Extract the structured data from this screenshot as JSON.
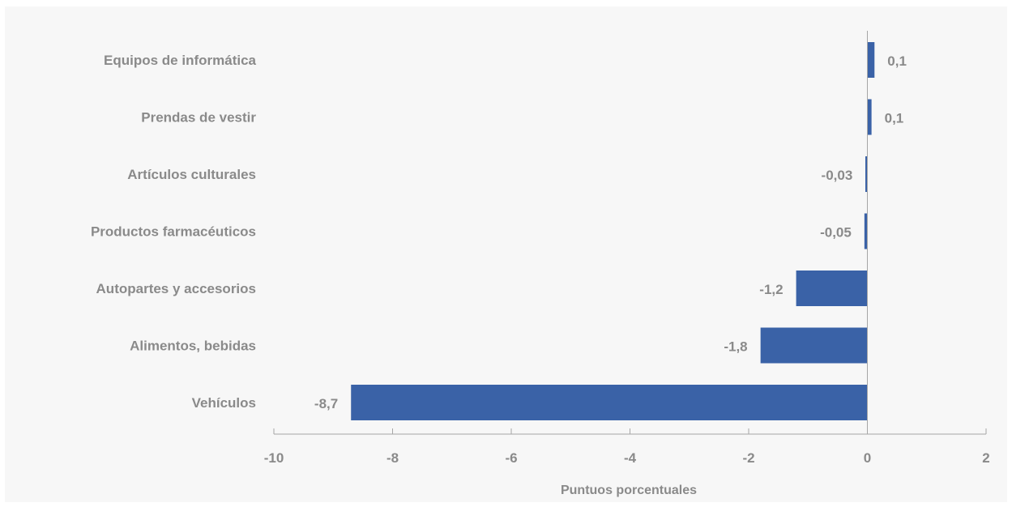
{
  "chart_data": {
    "type": "bar",
    "orientation": "horizontal",
    "categories": [
      "Equipos de informática",
      "Prendas de vestir",
      "Artículos culturales",
      "Productos farmacéuticos",
      "Autopartes y accesorios",
      "Alimentos, bebidas",
      "Vehículos"
    ],
    "values": [
      0.12,
      0.07,
      -0.03,
      -0.05,
      -1.2,
      -1.8,
      -8.7
    ],
    "value_labels": [
      "0,1",
      "0,1",
      "-0,03",
      "-0,05",
      "-1,2",
      "-1,8",
      "-8,7"
    ],
    "xlabel": "Puntuos porcentuales",
    "xlim": [
      -10,
      2
    ],
    "xticks": [
      -10,
      -8,
      -6,
      -4,
      -2,
      0,
      2
    ],
    "grid": false,
    "bar_color": "#3a62a7",
    "text_color": "#8a8a8a",
    "axis_color": "#a6a6a6",
    "background": "#f7f7f7"
  }
}
